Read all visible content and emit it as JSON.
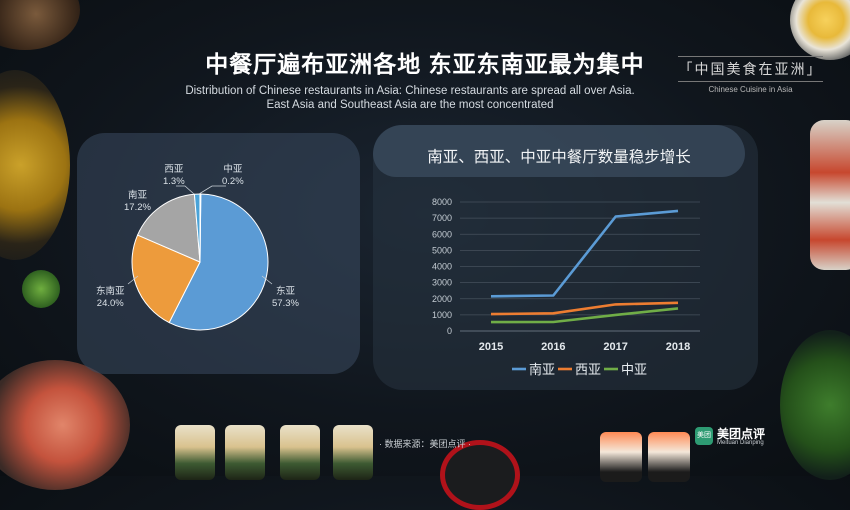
{
  "header": {
    "title": "中餐厅遍布亚洲各地 东亚东南亚最为集中",
    "subtitle_line1": "Distribution of Chinese restaurants in Asia: Chinese restaurants are spread all over Asia.",
    "subtitle_line2": "East Asia and Southeast Asia are the most concentrated"
  },
  "brand": {
    "cn": "「中国美食在亚洲」",
    "en": "Chinese Cuisine in Asia"
  },
  "footer": {
    "source": "· 数据来源：美团点评 ·"
  },
  "logo": {
    "cn": "美团点评",
    "en": "Meituan Dianping",
    "icon_text": "美团"
  },
  "colors": {
    "east_asia": "#5b9bd5",
    "southeast_asia": "#ed9b3c",
    "south_asia": "#a5a5a5",
    "west_asia": "#4aa3d8",
    "central_asia": "#ffd02c"
  },
  "chart_data": [
    {
      "type": "pie",
      "slices": [
        {
          "name": "东亚",
          "label": "东亚",
          "value_label": "57.3%",
          "value": 57.3,
          "color": "#5b9bd5"
        },
        {
          "name": "东南亚",
          "label": "东南亚",
          "value_label": "24.0%",
          "value": 24.0,
          "color": "#ed9b3c"
        },
        {
          "name": "南亚",
          "label": "南亚",
          "value_label": "17.2%",
          "value": 17.2,
          "color": "#a5a5a5"
        },
        {
          "name": "西亚",
          "label": "西亚",
          "value_label": "1.3%",
          "value": 1.3,
          "color": "#4aa3d8"
        },
        {
          "name": "中亚",
          "label": "中亚",
          "value_label": "0.2%",
          "value": 0.2,
          "color": "#ffd02c"
        }
      ]
    },
    {
      "type": "line",
      "title": "南亚、西亚、中亚中餐厅数量稳步增长",
      "categories": [
        "2015",
        "2016",
        "2017",
        "2018"
      ],
      "ylim": [
        0,
        8000
      ],
      "yticks": [
        "0",
        "1000",
        "2000",
        "3000",
        "4000",
        "5000",
        "6000",
        "7000",
        "8000"
      ],
      "series": [
        {
          "name": "南亚",
          "color": "#5b9bd5",
          "values": [
            2150,
            2200,
            7100,
            7450
          ]
        },
        {
          "name": "西亚",
          "color": "#ed7d31",
          "values": [
            1050,
            1100,
            1650,
            1750
          ]
        },
        {
          "name": "中亚",
          "color": "#70ad47",
          "values": [
            550,
            560,
            1000,
            1400
          ]
        }
      ],
      "legend_position": "bottom"
    }
  ]
}
